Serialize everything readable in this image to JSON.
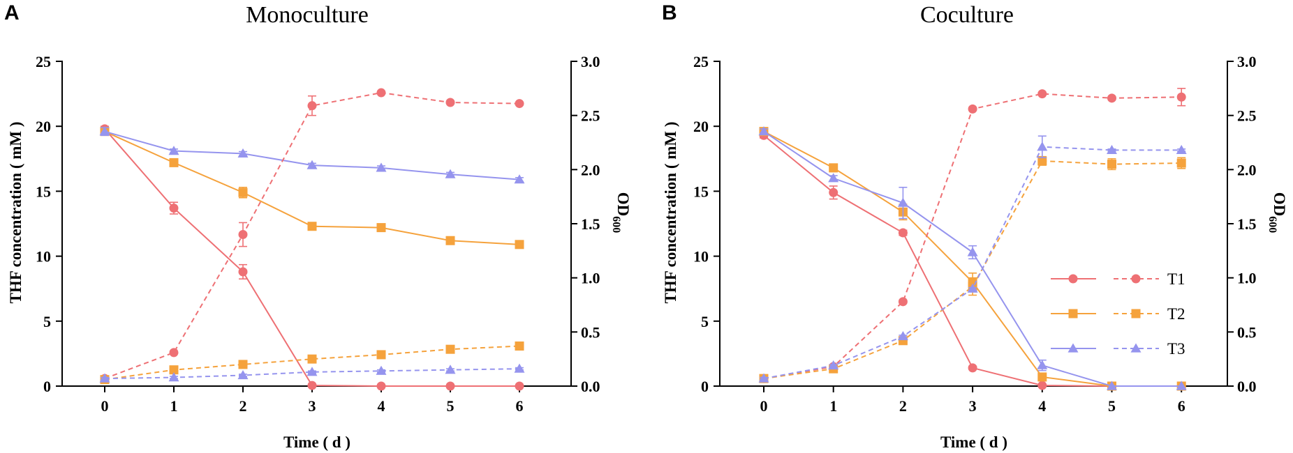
{
  "figure": {
    "panels": [
      "A",
      "B"
    ]
  },
  "colors": {
    "T1": "#EE7074",
    "T2": "#F5A23C",
    "T3": "#9594EE",
    "axis": "#000000"
  },
  "legend": {
    "entries": [
      "T1",
      "T2",
      "T3"
    ]
  },
  "chart_data": [
    {
      "type": "line",
      "panel": "A",
      "title": "Monoculture",
      "xlabel": "Time ( d )",
      "ylabel": "THF concentration ( mM )",
      "y2label_main": "OD",
      "y2label_sub": "600",
      "x": [
        0,
        1,
        2,
        3,
        4,
        5,
        6
      ],
      "xticks": [
        "0",
        "1",
        "2",
        "3",
        "4",
        "5",
        "6"
      ],
      "ylim": [
        0,
        25
      ],
      "yticks": [
        "0",
        "5",
        "10",
        "15",
        "20",
        "25"
      ],
      "y2lim": [
        0,
        3.0
      ],
      "y2ticks": [
        "0.0",
        "0.5",
        "1.0",
        "1.5",
        "2.0",
        "2.5",
        "3.0"
      ],
      "series": [
        {
          "name": "T1",
          "axis": "left",
          "style": "solid",
          "marker": "circle",
          "values": [
            19.8,
            13.7,
            8.8,
            0.05,
            0,
            0,
            0
          ],
          "err": [
            0.2,
            0.45,
            0.55,
            0.05,
            0,
            0,
            0
          ]
        },
        {
          "name": "T2",
          "axis": "left",
          "style": "solid",
          "marker": "square",
          "values": [
            19.6,
            17.2,
            14.9,
            12.3,
            12.2,
            11.2,
            10.9
          ],
          "err": [
            0.2,
            0.2,
            0.4,
            0.2,
            0.15,
            0.15,
            0.15
          ]
        },
        {
          "name": "T3",
          "axis": "left",
          "style": "solid",
          "marker": "triangle",
          "values": [
            19.6,
            18.1,
            17.9,
            17.0,
            16.8,
            16.3,
            15.9
          ],
          "err": [
            0.3,
            0.15,
            0.15,
            0.15,
            0.15,
            0.15,
            0.15
          ]
        },
        {
          "name": "T1",
          "axis": "right",
          "style": "dashed",
          "marker": "circle",
          "values": [
            0.07,
            0.31,
            1.4,
            2.59,
            2.71,
            2.62,
            2.61
          ],
          "err": [
            0.01,
            0.01,
            0.11,
            0.09,
            0.01,
            0.01,
            0.01
          ]
        },
        {
          "name": "T2",
          "axis": "right",
          "style": "dashed",
          "marker": "square",
          "values": [
            0.06,
            0.15,
            0.2,
            0.25,
            0.29,
            0.34,
            0.37
          ],
          "err": [
            0.01,
            0.01,
            0.01,
            0.01,
            0.01,
            0.01,
            0.01
          ]
        },
        {
          "name": "T3",
          "axis": "right",
          "style": "dashed",
          "marker": "triangle",
          "values": [
            0.07,
            0.08,
            0.1,
            0.13,
            0.14,
            0.15,
            0.16
          ],
          "err": [
            0.01,
            0.01,
            0.01,
            0.01,
            0.01,
            0.01,
            0.01
          ]
        }
      ]
    },
    {
      "type": "line",
      "panel": "B",
      "title": "Coculture",
      "xlabel": "Time ( d )",
      "ylabel": "THF concentration ( mM )",
      "y2label_main": "OD",
      "y2label_sub": "600",
      "x": [
        0,
        1,
        2,
        3,
        4,
        5,
        6
      ],
      "xticks": [
        "0",
        "1",
        "2",
        "3",
        "4",
        "5",
        "6"
      ],
      "ylim": [
        0,
        25
      ],
      "yticks": [
        "0",
        "5",
        "10",
        "15",
        "20",
        "25"
      ],
      "y2lim": [
        0,
        3.0
      ],
      "y2ticks": [
        "0.0",
        "0.5",
        "1.0",
        "1.5",
        "2.0",
        "2.5",
        "3.0"
      ],
      "series": [
        {
          "name": "T1",
          "axis": "left",
          "style": "solid",
          "marker": "circle",
          "values": [
            19.3,
            14.9,
            11.8,
            1.4,
            0.05,
            0,
            0
          ],
          "err": [
            0.2,
            0.5,
            0.2,
            0.1,
            0.05,
            0,
            0
          ]
        },
        {
          "name": "T2",
          "axis": "left",
          "style": "solid",
          "marker": "square",
          "values": [
            19.6,
            16.8,
            13.4,
            8.0,
            0.7,
            0,
            0
          ],
          "err": [
            0.2,
            0.3,
            0.6,
            0.7,
            0.3,
            0,
            0
          ]
        },
        {
          "name": "T3",
          "axis": "left",
          "style": "solid",
          "marker": "triangle",
          "values": [
            19.6,
            16.0,
            14.1,
            10.3,
            1.6,
            0,
            0
          ],
          "err": [
            0.2,
            0.2,
            1.2,
            0.5,
            0.4,
            0,
            0
          ]
        },
        {
          "name": "T1",
          "axis": "right",
          "style": "dashed",
          "marker": "circle",
          "values": [
            0.07,
            0.18,
            0.78,
            2.56,
            2.7,
            2.66,
            2.67
          ],
          "err": [
            0.01,
            0.01,
            0.01,
            0.01,
            0.01,
            0.01,
            0.08
          ]
        },
        {
          "name": "T2",
          "axis": "right",
          "style": "dashed",
          "marker": "square",
          "values": [
            0.07,
            0.16,
            0.42,
            0.92,
            2.08,
            2.05,
            2.06
          ],
          "err": [
            0.01,
            0.01,
            0.01,
            0.08,
            0.04,
            0.05,
            0.05
          ]
        },
        {
          "name": "T3",
          "axis": "right",
          "style": "dashed",
          "marker": "triangle",
          "values": [
            0.07,
            0.19,
            0.46,
            0.9,
            2.21,
            2.18,
            2.18
          ],
          "err": [
            0.01,
            0.01,
            0.01,
            0.01,
            0.1,
            0.01,
            0.01
          ]
        }
      ]
    }
  ]
}
